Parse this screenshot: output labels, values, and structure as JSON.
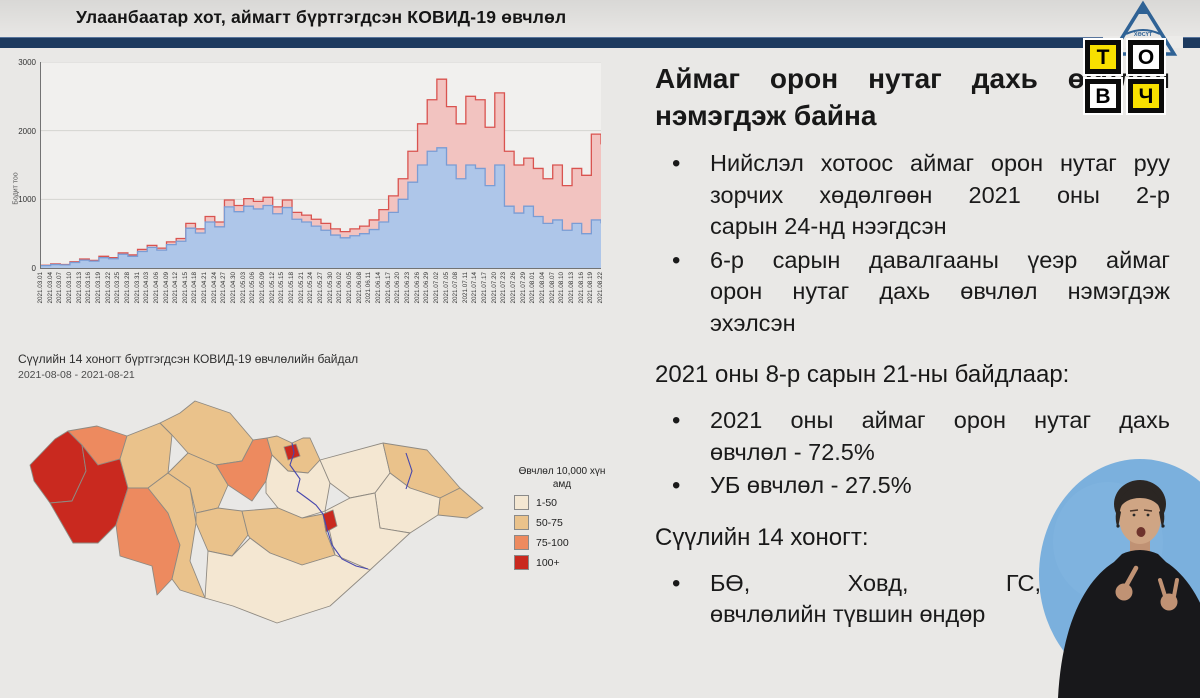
{
  "header": {
    "title": "Улаанбаатар хот, аймагт бүртгэгдсэн КОВИД-19 өвчлөл"
  },
  "logo": {
    "triangle_label": "ХӨСҮТ",
    "tiles": [
      {
        "letter": "Т",
        "bg": "#f8e000"
      },
      {
        "letter": "О",
        "bg": "#ffffff"
      },
      {
        "letter": "В",
        "bg": "#ffffff"
      },
      {
        "letter": "Ч",
        "bg": "#f8e000"
      }
    ]
  },
  "chart_data": {
    "type": "area",
    "title": "",
    "ylabel": "Бодит тоо",
    "ylim": [
      0,
      3000
    ],
    "yticks": [
      0,
      1000,
      2000,
      3000
    ],
    "grid": true,
    "legend": false,
    "x": [
      "2021.03.01",
      "2021.03.04",
      "2021.03.07",
      "2021.03.10",
      "2021.03.13",
      "2021.03.16",
      "2021.03.19",
      "2021.03.22",
      "2021.03.25",
      "2021.03.28",
      "2021.03.31",
      "2021.04.03",
      "2021.04.06",
      "2021.04.09",
      "2021.04.12",
      "2021.04.15",
      "2021.04.18",
      "2021.04.21",
      "2021.04.24",
      "2021.04.27",
      "2021.04.30",
      "2021.05.03",
      "2021.05.06",
      "2021.05.09",
      "2021.05.12",
      "2021.05.15",
      "2021.05.18",
      "2021.05.21",
      "2021.05.24",
      "2021.05.27",
      "2021.05.30",
      "2021.06.02",
      "2021.06.05",
      "2021.06.08",
      "2021.06.11",
      "2021.06.14",
      "2021.06.17",
      "2021.06.20",
      "2021.06.23",
      "2021.06.26",
      "2021.06.29",
      "2021.07.02",
      "2021.07.05",
      "2021.07.08",
      "2021.07.11",
      "2021.07.14",
      "2021.07.17",
      "2021.07.20",
      "2021.07.23",
      "2021.07.26",
      "2021.07.29",
      "2021.08.01",
      "2021.08.04",
      "2021.08.07",
      "2021.08.10",
      "2021.08.13",
      "2021.08.16",
      "2021.08.19",
      "2021.08.22"
    ],
    "series": [
      {
        "id": "total-red-area",
        "line_color": "#d9534f",
        "fill_color": "#f2c3c0",
        "values": [
          40,
          60,
          50,
          90,
          130,
          110,
          170,
          150,
          220,
          190,
          270,
          330,
          290,
          380,
          430,
          650,
          570,
          750,
          670,
          990,
          910,
          1010,
          970,
          1030,
          890,
          990,
          810,
          770,
          710,
          650,
          570,
          530,
          570,
          610,
          700,
          850,
          1050,
          1300,
          1700,
          2100,
          2450,
          2750,
          2350,
          2100,
          2500,
          2450,
          2050,
          2550,
          1700,
          1500,
          1600,
          1450,
          1300,
          1500,
          1200,
          1450,
          1350,
          1950,
          1800
        ]
      },
      {
        "id": "ub-blue-area",
        "line_color": "#7a9cd4",
        "fill_color": "#aec6e9",
        "values": [
          35,
          50,
          45,
          80,
          115,
          100,
          150,
          135,
          200,
          170,
          240,
          300,
          260,
          340,
          390,
          580,
          510,
          670,
          600,
          890,
          820,
          900,
          860,
          910,
          790,
          880,
          710,
          670,
          610,
          550,
          480,
          440,
          470,
          500,
          560,
          670,
          810,
          1000,
          1250,
          1500,
          1700,
          1750,
          1500,
          1300,
          1500,
          1450,
          1200,
          1500,
          900,
          800,
          900,
          750,
          650,
          700,
          550,
          650,
          500,
          700,
          650
        ]
      }
    ]
  },
  "map": {
    "title": "Сүүлийн 14 хоногт бүртгэгдсэн КОВИД-19 өвчлөлийн байдал",
    "subtitle": "2021-08-08 - 2021-08-21",
    "legend": {
      "title": "Өвчлөл 10,000 хүн амд",
      "items": [
        {
          "label": "1-50",
          "color": "#f4e7d2"
        },
        {
          "label": "50-75",
          "color": "#eac28b"
        },
        {
          "label": "75-100",
          "color": "#ed8a5f"
        },
        {
          "label": "100+",
          "color": "#c9291f"
        }
      ]
    },
    "regions": [
      {
        "name": "bayan-olgii",
        "color": "#c9291f"
      },
      {
        "name": "uvs",
        "color": "#ed8a5f"
      },
      {
        "name": "khovd",
        "color": "#c9291f"
      },
      {
        "name": "zavkhan",
        "color": "#eac28b"
      },
      {
        "name": "khovsgol",
        "color": "#eac28b"
      },
      {
        "name": "govi-altai",
        "color": "#ed8a5f"
      },
      {
        "name": "bayankhongor",
        "color": "#eac28b"
      },
      {
        "name": "arkhangai",
        "color": "#eac28b"
      },
      {
        "name": "bulgan",
        "color": "#ed8a5f"
      },
      {
        "name": "ovorkhangai",
        "color": "#eac28b"
      },
      {
        "name": "selenge",
        "color": "#eac28b"
      },
      {
        "name": "darkhan-uul",
        "color": "#c9291f"
      },
      {
        "name": "tov",
        "color": "#f4e7d2"
      },
      {
        "name": "khentii",
        "color": "#f4e7d2"
      },
      {
        "name": "dornod-north",
        "color": "#eac28b"
      },
      {
        "name": "dornod-east",
        "color": "#eac28b"
      },
      {
        "name": "sukhbaatar",
        "color": "#f4e7d2"
      },
      {
        "name": "dornogovi",
        "color": "#f4e7d2"
      },
      {
        "name": "govisumber",
        "color": "#c9291f"
      },
      {
        "name": "dundgovi",
        "color": "#eac28b"
      },
      {
        "name": "omnogovi",
        "color": "#f4e7d2"
      }
    ]
  },
  "right": {
    "heading1": "Аймаг орон нутаг дахь өвчлөл",
    "heading2": "нэмэгдэж байна",
    "b1": [
      "Нийслэл хотоос аймаг орон нутаг руу",
      "зорчих хөдөлгөөн 2021 оны 2-р",
      "сарын 24-нд нээгдсэн"
    ],
    "b2": [
      "6-р сарын давалгааны үеэр аймаг",
      "орон нутаг дахь өвчлөл нэмэгдэж",
      "эхэлсэн"
    ],
    "p1": "2021 оны 8-р сарын 21-ны байдлаар:",
    "b3": [
      "2021 оны аймаг орон нутаг дахь",
      "өвчлөл - 72.5%"
    ],
    "b4": "УБ өвчлөл - 27.5%",
    "p2": "Сүүлийн 14 хоногт:",
    "b5": [
      "БӨ, Ховд, ГС, ДА",
      "өвчлөлийн түвшин өндөр"
    ]
  }
}
